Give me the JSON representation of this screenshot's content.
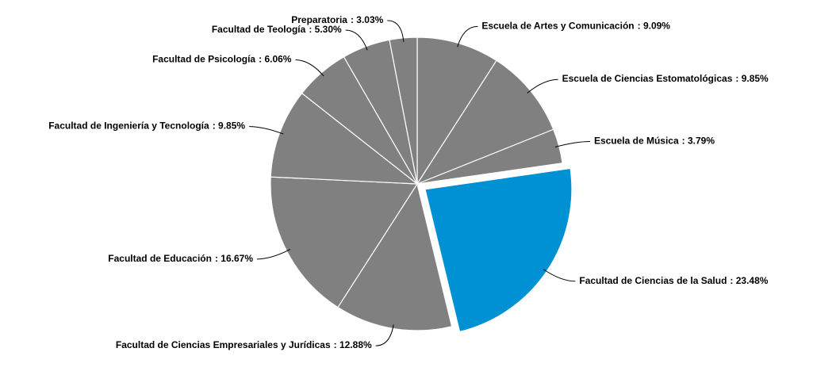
{
  "chart_data": {
    "type": "pie",
    "categories": [
      "Escuela de Artes y Comunicación",
      "Escuela de Ciencias Estomatológicas",
      "Escuela de Música",
      "Facultad de Ciencias de la Salud",
      "Facultad de Ciencias Empresariales y Jurídicas",
      "Facultad de Educación",
      "Facultad de Ingeniería y Tecnología",
      "Facultad de Psicología",
      "Facultad de Teología",
      "Preparatoria"
    ],
    "values": [
      9.09,
      9.85,
      3.79,
      23.48,
      12.88,
      16.67,
      9.85,
      6.06,
      5.3,
      3.03
    ],
    "value_labels": [
      ": 9.09%",
      ": 9.85%",
      ": 3.79%",
      ": 23.48%",
      ": 12.88%",
      ": 16.67%",
      ": 9.85%",
      ": 6.06%",
      ": 5.30%",
      ": 3.03%"
    ],
    "colors": [
      "#808080",
      "#808080",
      "#808080",
      "#0090d4",
      "#808080",
      "#808080",
      "#808080",
      "#808080",
      "#808080",
      "#808080"
    ],
    "explode": [
      0,
      0,
      0,
      1,
      0,
      0,
      0,
      0,
      0,
      0
    ]
  }
}
